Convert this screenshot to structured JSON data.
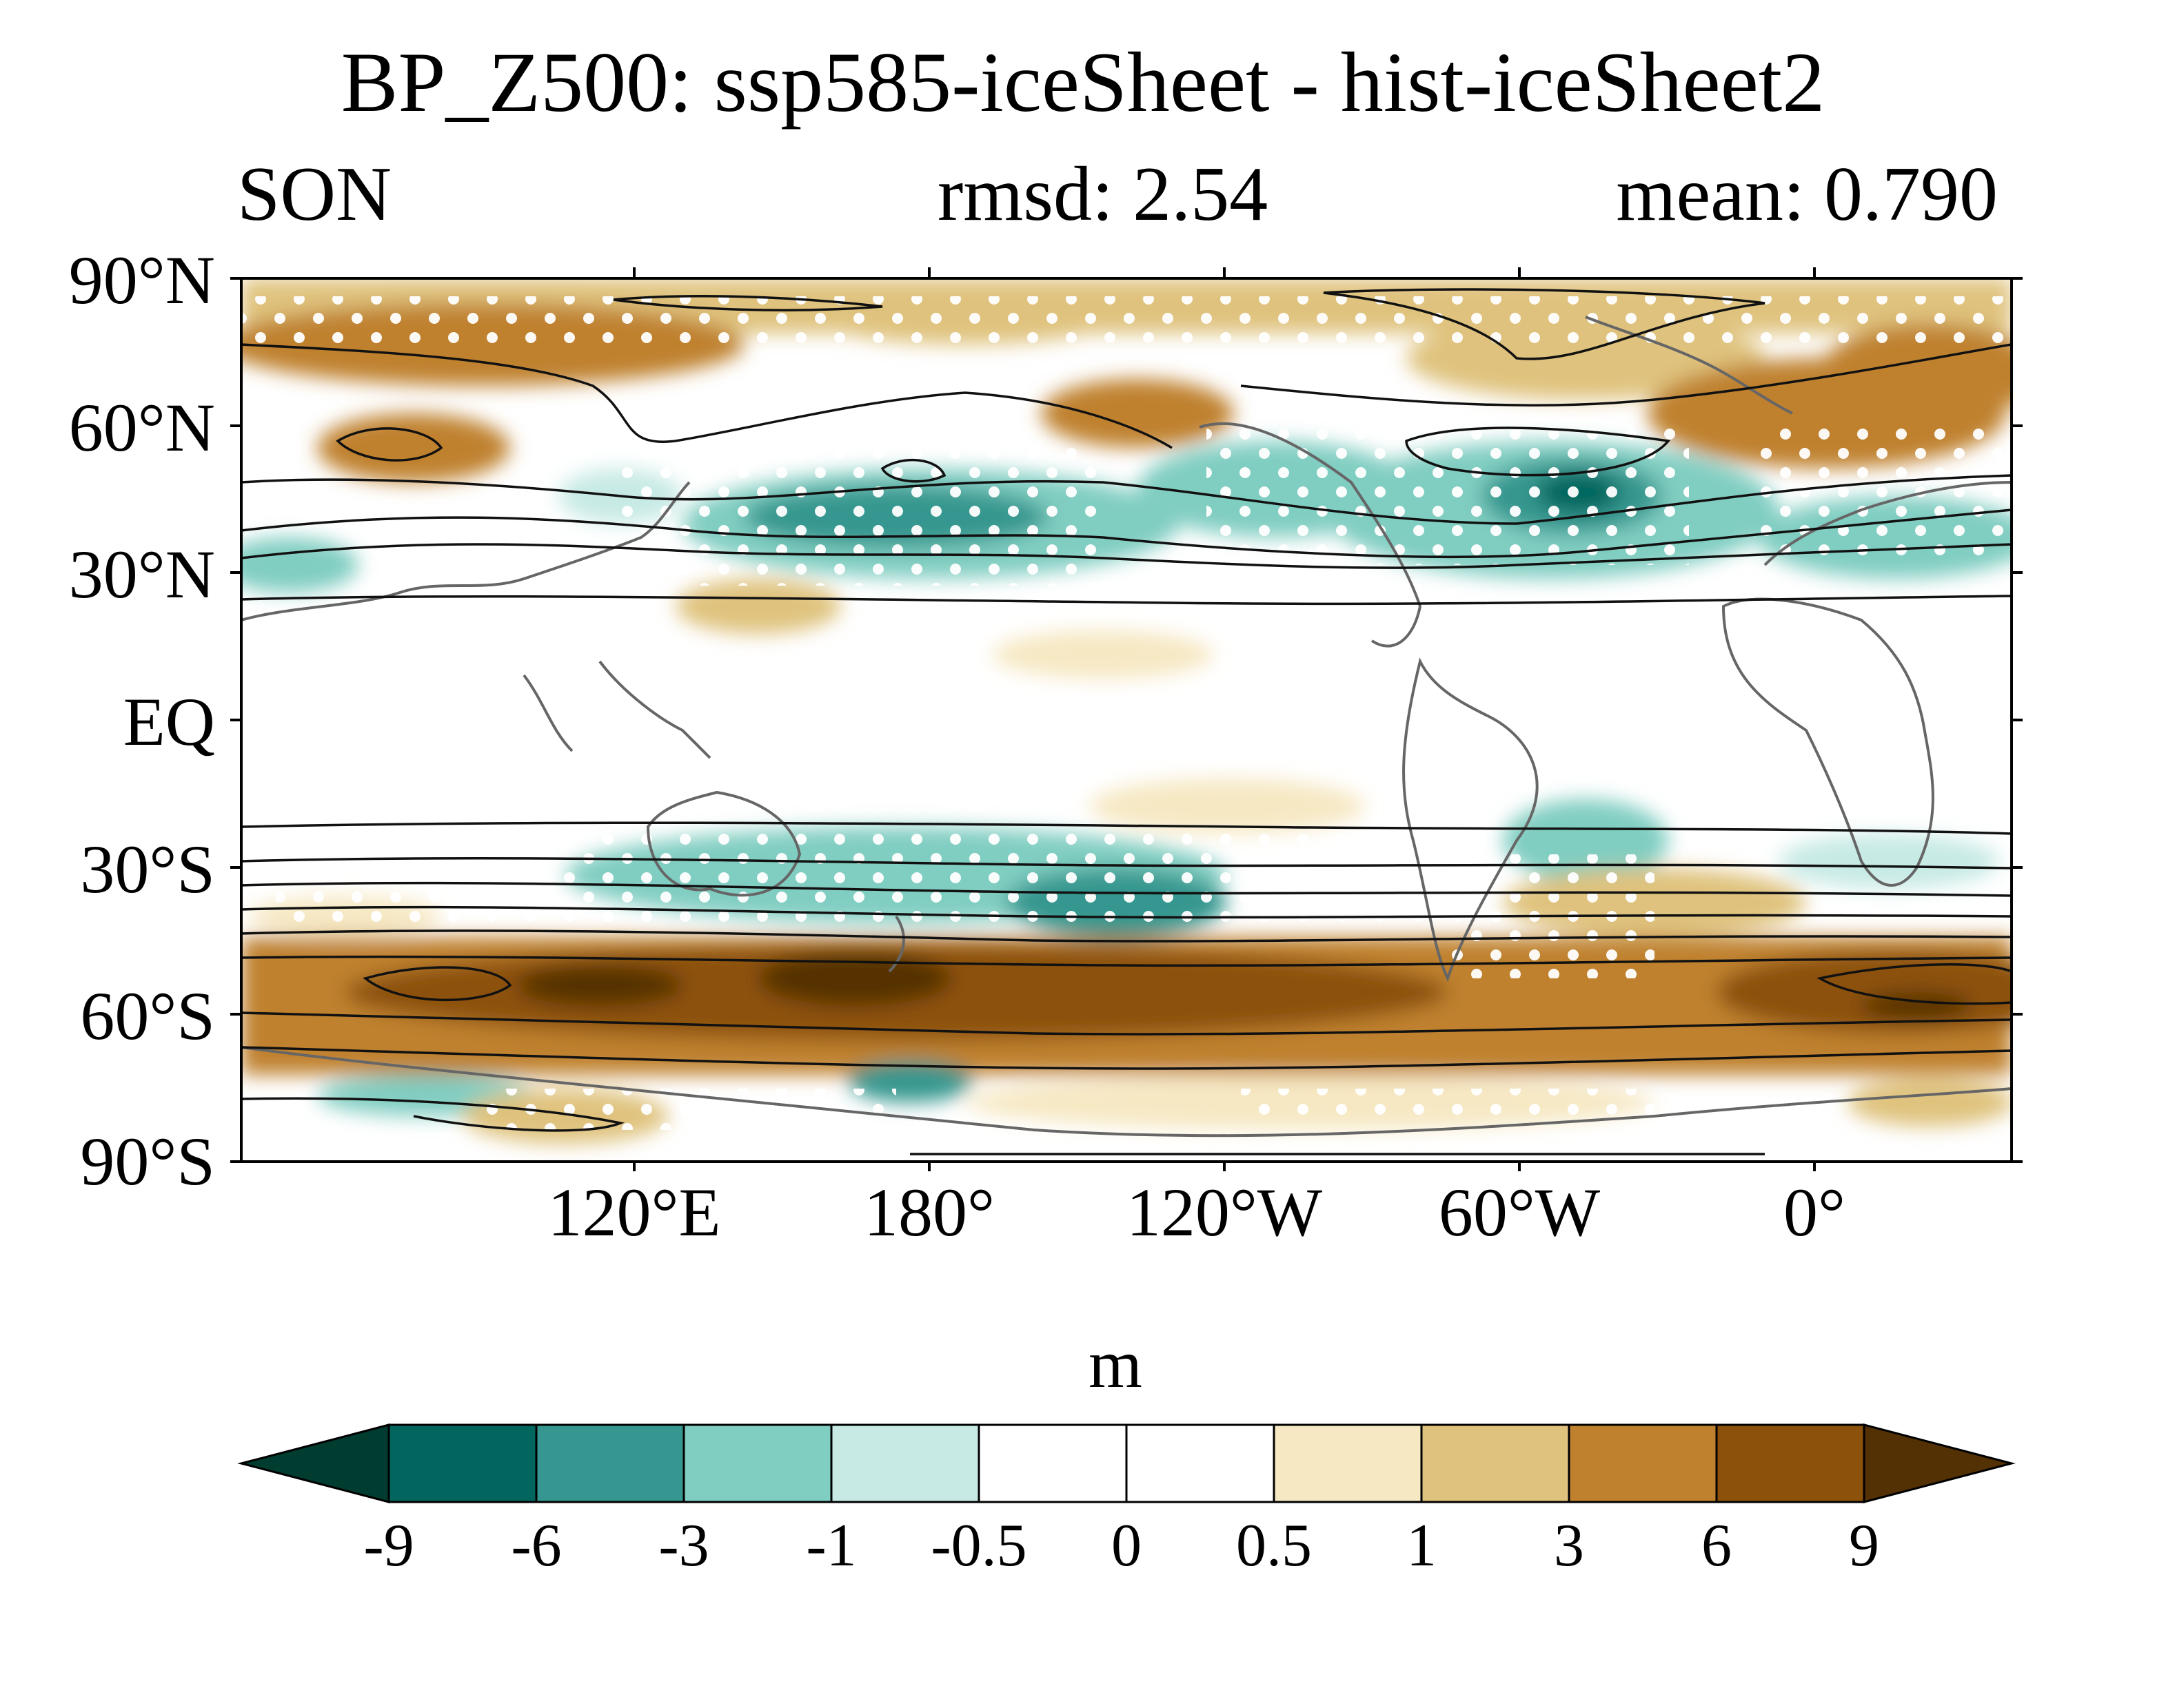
{
  "title": "BP_Z500: ssp585-iceSheet - hist-iceSheet2",
  "season": "SON",
  "rmsd": "rmsd: 2.54",
  "mean": "mean: 0.790",
  "lat_labels": [
    "90°N",
    "60°N",
    "30°N",
    "EQ",
    "30°S",
    "60°S",
    "90°S"
  ],
  "lon_labels": [
    "120°E",
    "180°",
    "120°W",
    "60°W",
    "0°"
  ],
  "unit": "m",
  "colorbar": {
    "labels": [
      "-9",
      "-6",
      "-3",
      "-1",
      "-0.5",
      "0",
      "0.5",
      "1",
      "3",
      "6",
      "9"
    ],
    "colors": [
      "#003c30",
      "#01665e",
      "#35978f",
      "#80cdc1",
      "#c7eae5",
      "#ffffff",
      "#ffffff",
      "#f6e8c3",
      "#dfc27d",
      "#bf812d",
      "#8c510a",
      "#543005"
    ]
  },
  "map": {
    "projection": "cylindrical equidistant",
    "lon_range": [
      40,
      400
    ],
    "lat_range": [
      -90,
      90
    ],
    "stippling": "significance dots (white)",
    "contours": "climatology (black lines)"
  }
}
